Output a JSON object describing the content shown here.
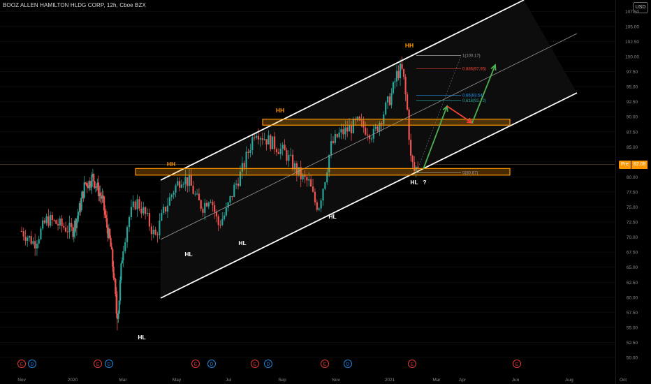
{
  "title": "BOOZ ALLEN HAMILTON HLDG CORP, 12h, Cboe BZX",
  "currency_button": "USD",
  "price_tag": {
    "label": "Pre",
    "value": "82.08"
  },
  "colors": {
    "up": "#26a69a",
    "down": "#ef5350",
    "channel": "#ffffff",
    "zone": "#ff9800",
    "arrow_up": "#4caf50",
    "arrow_down": "#f44336",
    "fib": "#2196f3",
    "earnings": "#e53935",
    "dividend": "#1e88e5"
  },
  "chart_data": {
    "type": "candlestick",
    "y_range": [
      48.0,
      109.0
    ],
    "y_ticks": [
      "50.00",
      "52.50",
      "55.00",
      "57.50",
      "60.00",
      "62.50",
      "65.00",
      "67.50",
      "70.00",
      "72.50",
      "75.00",
      "77.50",
      "80.00",
      "82.50",
      "85.00",
      "87.50",
      "90.00",
      "92.50",
      "95.00",
      "97.50",
      "100.00",
      "102.50",
      "105.00",
      "107.50"
    ],
    "x_ticks": [
      {
        "label": "Nov",
        "t": 0
      },
      {
        "label": "2020",
        "t": 2
      },
      {
        "label": "Mar",
        "t": 6
      },
      {
        "label": "May",
        "t": 8
      },
      {
        "label": "Jul",
        "t": 10
      },
      {
        "label": "Sep",
        "t": 12
      },
      {
        "label": "Nov",
        "t": 14
      },
      {
        "label": "2021",
        "t": 16
      },
      {
        "label": "Mar",
        "t": 18
      },
      {
        "label": "Apr",
        "t": 19
      },
      {
        "label": "Jun",
        "t": 21
      },
      {
        "label": "Aug",
        "t": 23
      },
      {
        "label": "Oct",
        "t": 25
      }
    ],
    "close_path": [
      {
        "t": 0.0,
        "c": 71
      },
      {
        "t": 0.5,
        "c": 69
      },
      {
        "t": 1.0,
        "c": 73
      },
      {
        "t": 1.5,
        "c": 72
      },
      {
        "t": 2.0,
        "c": 71
      },
      {
        "t": 2.6,
        "c": 75
      },
      {
        "t": 3.0,
        "c": 79
      },
      {
        "t": 3.3,
        "c": 79
      },
      {
        "t": 3.6,
        "c": 80
      },
      {
        "t": 4.0,
        "c": 78
      },
      {
        "t": 4.4,
        "c": 76
      },
      {
        "t": 4.7,
        "c": 72
      },
      {
        "t": 5.0,
        "c": 69
      },
      {
        "t": 5.3,
        "c": 63
      },
      {
        "t": 5.5,
        "c": 57
      },
      {
        "t": 5.65,
        "c": 58
      },
      {
        "t": 5.9,
        "c": 66
      },
      {
        "t": 6.2,
        "c": 73
      },
      {
        "t": 6.5,
        "c": 76
      },
      {
        "t": 6.8,
        "c": 74
      },
      {
        "t": 7.2,
        "c": 70
      },
      {
        "t": 7.5,
        "c": 74
      },
      {
        "t": 7.9,
        "c": 78
      },
      {
        "t": 8.2,
        "c": 80
      },
      {
        "t": 8.5,
        "c": 79
      },
      {
        "t": 8.8,
        "c": 76
      },
      {
        "t": 9.0,
        "c": 75
      },
      {
        "t": 9.3,
        "c": 77
      },
      {
        "t": 9.6,
        "c": 72
      },
      {
        "t": 9.9,
        "c": 74
      },
      {
        "t": 10.2,
        "c": 78
      },
      {
        "t": 10.5,
        "c": 81
      },
      {
        "t": 10.8,
        "c": 85
      },
      {
        "t": 11.0,
        "c": 88
      },
      {
        "t": 11.2,
        "c": 87
      },
      {
        "t": 11.5,
        "c": 86
      },
      {
        "t": 11.8,
        "c": 85
      },
      {
        "t": 12.1,
        "c": 84
      },
      {
        "t": 12.4,
        "c": 82
      },
      {
        "t": 12.7,
        "c": 80
      },
      {
        "t": 13.0,
        "c": 79
      },
      {
        "t": 13.2,
        "c": 76
      },
      {
        "t": 13.35,
        "c": 75
      },
      {
        "t": 13.6,
        "c": 80
      },
      {
        "t": 13.8,
        "c": 85
      },
      {
        "t": 14.1,
        "c": 87
      },
      {
        "t": 14.5,
        "c": 88
      },
      {
        "t": 14.8,
        "c": 89
      },
      {
        "t": 15.1,
        "c": 88
      },
      {
        "t": 15.4,
        "c": 87
      },
      {
        "t": 15.7,
        "c": 90
      },
      {
        "t": 15.9,
        "c": 92
      },
      {
        "t": 16.1,
        "c": 94
      },
      {
        "t": 16.3,
        "c": 97
      },
      {
        "t": 16.5,
        "c": 98
      },
      {
        "t": 16.6,
        "c": 96
      },
      {
        "t": 16.75,
        "c": 91
      },
      {
        "t": 16.9,
        "c": 83
      },
      {
        "t": 17.05,
        "c": 81
      },
      {
        "t": 17.2,
        "c": 82
      }
    ],
    "annotations": [
      {
        "text": "HH",
        "kind": "high"
      },
      {
        "text": "HH",
        "kind": "high"
      },
      {
        "text": "HH",
        "kind": "high"
      },
      {
        "text": "HL",
        "kind": "low"
      },
      {
        "text": "HL",
        "kind": "low"
      },
      {
        "text": "HL",
        "kind": "low"
      },
      {
        "text": "HL",
        "kind": "low"
      },
      {
        "text": "HL",
        "kind": "low"
      },
      {
        "text": "?",
        "kind": "question"
      }
    ],
    "fib_levels": [
      {
        "ratio": "1",
        "price": 100.17
      },
      {
        "ratio": "0.886",
        "price": 97.95
      },
      {
        "ratio": "0.66",
        "price": 93.54
      },
      {
        "ratio": "0.618",
        "price": 92.72
      },
      {
        "ratio": "0",
        "price": 80.67
      }
    ],
    "fib_labels": [
      "1(100.17)",
      "0.886(97.95)",
      "0.66(93.54)",
      "0.618(92.72)",
      "0(80.67)"
    ],
    "zones": [
      {
        "top": 81.4,
        "bottom": 80.3
      },
      {
        "top": 89.6,
        "bottom": 88.6
      }
    ],
    "event_markers": [
      "E",
      "D",
      "E",
      "D",
      "E",
      "D",
      "E",
      "D",
      "E",
      "D",
      "E",
      "E"
    ]
  }
}
